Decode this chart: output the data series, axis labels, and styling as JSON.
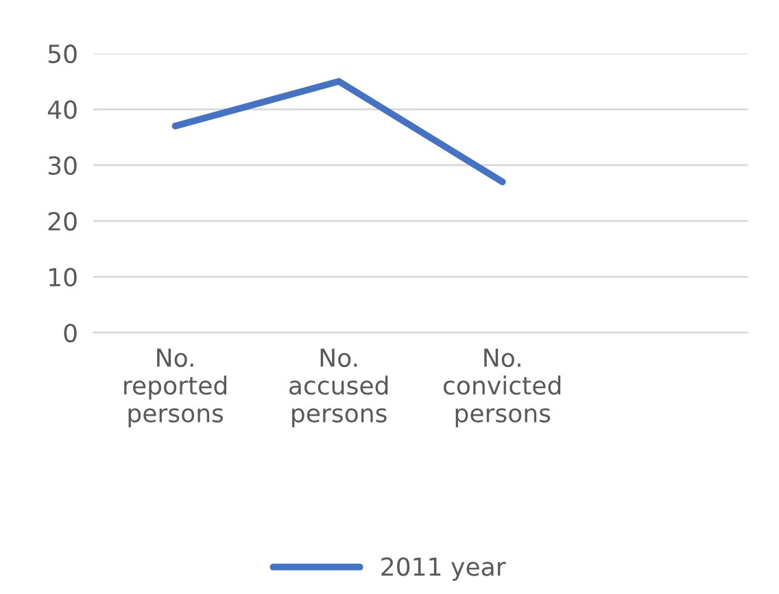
{
  "chart_data": {
    "type": "line",
    "categories": [
      "No.\nreported\npersons",
      "No.\naccused\npersons",
      "No.\nconvicted\npersons",
      null
    ],
    "series": [
      {
        "name": "2011 year",
        "color": "#4472c4",
        "values": [
          37,
          45,
          27,
          null
        ]
      }
    ],
    "ylim": [
      0,
      50
    ],
    "yticks": [
      0,
      10,
      20,
      30,
      40,
      50
    ],
    "grid": "y",
    "legend": "bottom",
    "marker": "none",
    "line_style": "solid"
  }
}
